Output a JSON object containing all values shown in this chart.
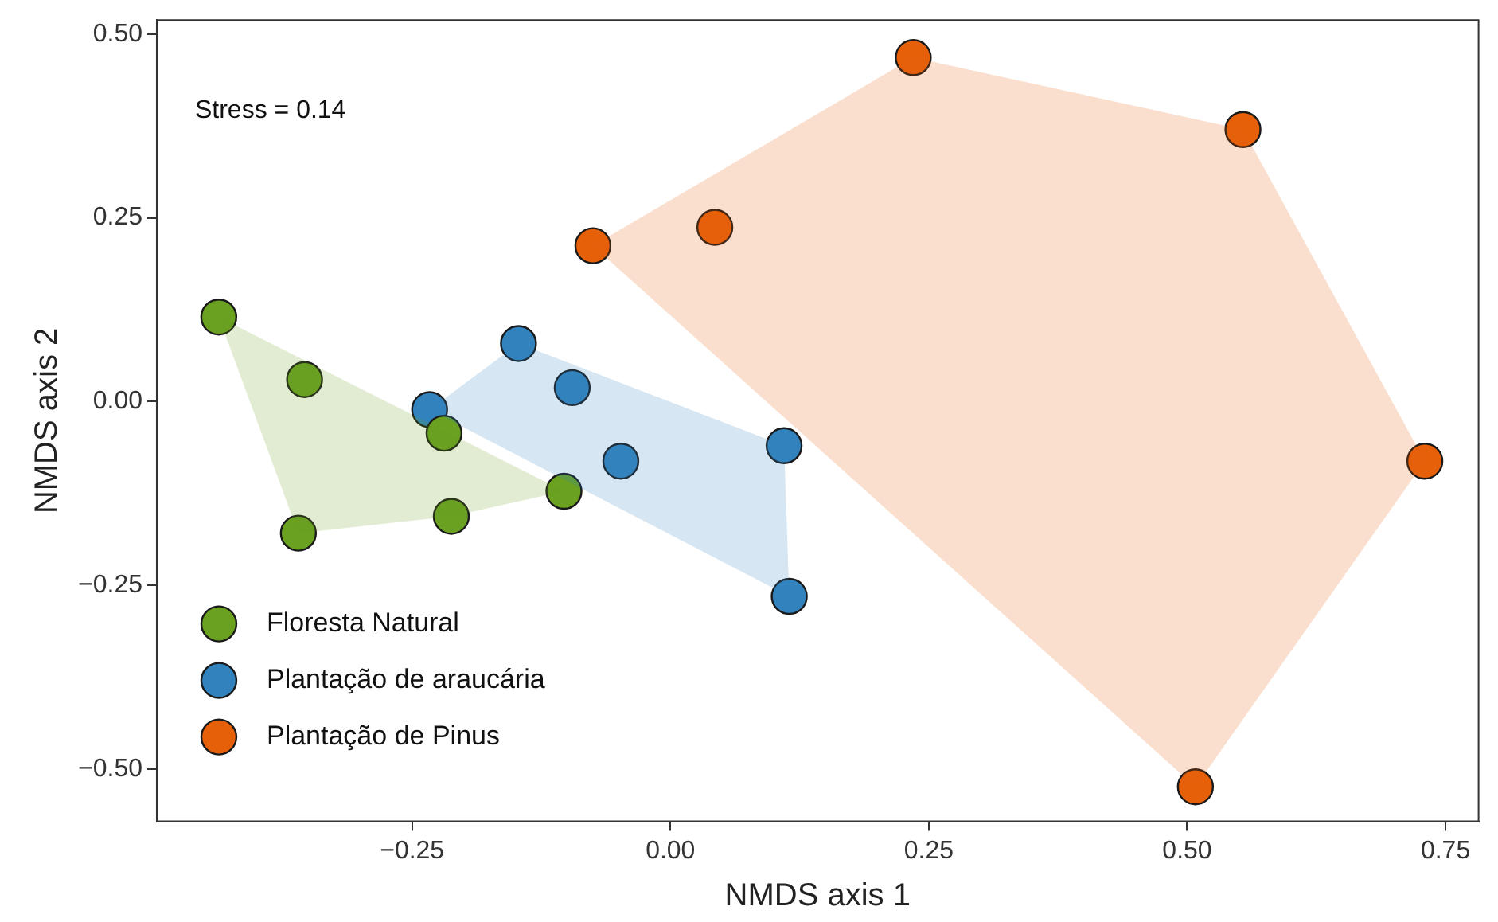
{
  "chart_data": {
    "type": "scatter",
    "xlabel": "NMDS axis 1",
    "ylabel": "NMDS axis 2",
    "annotations": [
      "Stress = 0.14"
    ],
    "xlim": [
      -0.497,
      0.782
    ],
    "ylim": [
      -0.571,
      0.519
    ],
    "xticks": [
      {
        "value": -0.25,
        "label": "−0.25"
      },
      {
        "value": 0,
        "label": "0.00"
      },
      {
        "value": 0.25,
        "label": "0.25"
      },
      {
        "value": 0.5,
        "label": "0.50"
      },
      {
        "value": 0.75,
        "label": "0.75"
      }
    ],
    "yticks": [
      {
        "value": -0.5,
        "label": "−0.50"
      },
      {
        "value": -0.25,
        "label": "−0.25"
      },
      {
        "value": 0,
        "label": "0.00"
      },
      {
        "value": 0.25,
        "label": "0.25"
      },
      {
        "value": 0.5,
        "label": "0.50"
      }
    ],
    "grid": false,
    "legend": "bottom left",
    "marker": "circle",
    "series": [
      {
        "type": "area",
        "marker": "none",
        "color": "#6aa121",
        "x": [
          -0.437,
          -0.36,
          -0.212,
          -0.103
        ],
        "values": [
          0.115,
          -0.179,
          -0.156,
          -0.122
        ]
      },
      {
        "type": "area",
        "marker": "none",
        "color": "#3182bd",
        "x": [
          -0.233,
          -0.147,
          0.11,
          0.115
        ],
        "values": [
          -0.011,
          0.079,
          -0.06,
          -0.265
        ]
      },
      {
        "type": "area",
        "marker": "none",
        "color": "#e6600a",
        "x": [
          -0.075,
          0.235,
          0.554,
          0.73,
          0.508
        ],
        "values": [
          0.212,
          0.468,
          0.37,
          -0.081,
          -0.524
        ]
      },
      {
        "name": "Floresta Natural",
        "color": "#6aa121",
        "x": [
          -0.437,
          -0.354,
          -0.219,
          -0.212,
          -0.36,
          -0.103
        ],
        "values": [
          0.115,
          0.03,
          -0.043,
          -0.156,
          -0.179,
          -0.122
        ]
      },
      {
        "name": "Plantação de araucária",
        "color": "#3182bd",
        "x": [
          -0.233,
          -0.147,
          -0.095,
          -0.048,
          0.11,
          0.115
        ],
        "values": [
          -0.011,
          0.079,
          0.019,
          -0.081,
          -0.06,
          -0.265
        ]
      },
      {
        "name": "Plantação de Pinus",
        "color": "#e6600a",
        "x": [
          -0.075,
          0.043,
          0.235,
          0.554,
          0.73,
          0.508
        ],
        "values": [
          0.212,
          0.237,
          0.468,
          0.37,
          -0.081,
          -0.524
        ]
      }
    ]
  }
}
